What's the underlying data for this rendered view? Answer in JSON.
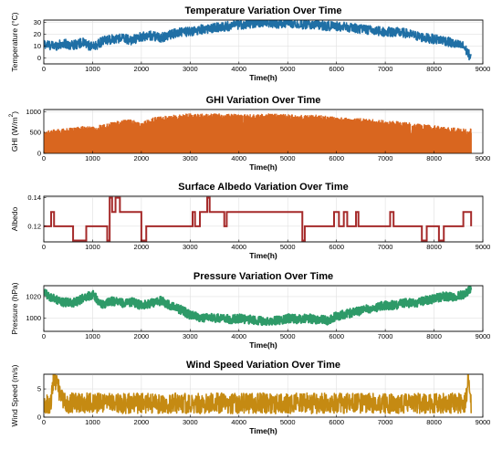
{
  "chart_data": [
    {
      "type": "line",
      "title": "Temperature Variation Over Time",
      "xlabel": "Time(h)",
      "ylabel": "Temperature (°C)",
      "xlim": [
        0,
        9000
      ],
      "ylim": [
        -5,
        32
      ],
      "xticks": [
        0,
        1000,
        2000,
        3000,
        4000,
        5000,
        6000,
        7000,
        8000,
        9000
      ],
      "yticks": [
        0,
        10,
        20,
        30
      ],
      "grid": true,
      "color": "#1f6fa5",
      "series": [
        {
          "x": [
            0,
            200,
            400,
            600,
            800,
            1000,
            1200,
            1400,
            1600,
            1800,
            2000,
            2200,
            2400,
            2600,
            2800,
            3000,
            3200,
            3400,
            3600,
            3800,
            4000,
            4200,
            4400,
            4600,
            4800,
            5000,
            5200,
            5400,
            5600,
            5800,
            6000,
            6200,
            6400,
            6600,
            6800,
            7000,
            7200,
            7400,
            7600,
            7800,
            8000,
            8200,
            8400,
            8600,
            8760
          ],
          "y": [
            12,
            10,
            12,
            11,
            13,
            9,
            14,
            16,
            17,
            15,
            18,
            19,
            17,
            20,
            22,
            22,
            24,
            25,
            26,
            27,
            28,
            29,
            30,
            30,
            29,
            30,
            29,
            28,
            28,
            27,
            27,
            26,
            25,
            24,
            23,
            22,
            22,
            21,
            19,
            17,
            16,
            15,
            12,
            10,
            0
          ],
          "noise": 4
        }
      ]
    },
    {
      "type": "area",
      "title": "GHI Variation Over Time",
      "xlabel": "Time(h)",
      "ylabel": "GHI (W/m²)",
      "ylabel_parts": [
        "GHI (W/m",
        "2",
        ")"
      ],
      "xlim": [
        0,
        9000
      ],
      "ylim": [
        0,
        1050
      ],
      "xticks": [
        0,
        1000,
        2000,
        3000,
        4000,
        5000,
        6000,
        7000,
        8000,
        9000
      ],
      "yticks": [
        0,
        500,
        1000
      ],
      "grid": true,
      "color": "#d9661f",
      "series": [
        {
          "x": [
            0,
            200,
            400,
            600,
            800,
            1000,
            1200,
            1400,
            1600,
            1800,
            2000,
            2200,
            2400,
            2600,
            2800,
            3000,
            3200,
            3400,
            3600,
            3800,
            4000,
            4200,
            4400,
            4600,
            4800,
            5000,
            5200,
            5400,
            5600,
            5800,
            6000,
            6200,
            6400,
            6600,
            6800,
            7000,
            7200,
            7400,
            7600,
            7800,
            8000,
            8200,
            8400,
            8600,
            8760
          ],
          "y": [
            540,
            580,
            600,
            620,
            660,
            640,
            700,
            760,
            800,
            820,
            760,
            860,
            900,
            920,
            940,
            960,
            950,
            960,
            960,
            950,
            950,
            940,
            940,
            960,
            950,
            940,
            930,
            920,
            930,
            900,
            880,
            870,
            860,
            840,
            820,
            800,
            780,
            760,
            720,
            700,
            680,
            640,
            620,
            600,
            600
          ],
          "noise": 380
        }
      ]
    },
    {
      "type": "line",
      "title": "Surface Albedo Variation Over Time",
      "xlabel": "Time(h)",
      "ylabel": "Albedo",
      "xlim": [
        0,
        9000
      ],
      "ylim": [
        0.109,
        0.141
      ],
      "xticks": [
        0,
        1000,
        2000,
        3000,
        4000,
        5000,
        6000,
        7000,
        8000,
        9000
      ],
      "yticks": [
        0.12,
        0.14
      ],
      "grid": true,
      "color": "#a52a2a",
      "step": true,
      "series": [
        {
          "x": [
            0,
            150,
            210,
            600,
            870,
            930,
            1300,
            1350,
            1400,
            1470,
            1560,
            2000,
            2100,
            3050,
            3100,
            3200,
            3350,
            3400,
            3700,
            3750,
            5300,
            5350,
            5950,
            6050,
            6150,
            6220,
            6400,
            6450,
            7100,
            7170,
            7750,
            7850,
            8100,
            8200,
            8400,
            8600,
            8760
          ],
          "y": [
            0.12,
            0.13,
            0.12,
            0.11,
            0.12,
            0.12,
            0.11,
            0.14,
            0.13,
            0.14,
            0.13,
            0.11,
            0.12,
            0.13,
            0.12,
            0.13,
            0.14,
            0.13,
            0.12,
            0.13,
            0.11,
            0.12,
            0.13,
            0.12,
            0.13,
            0.12,
            0.13,
            0.12,
            0.13,
            0.12,
            0.11,
            0.12,
            0.11,
            0.12,
            0.12,
            0.13,
            0.12
          ]
        }
      ]
    },
    {
      "type": "line",
      "title": "Pressure Variation Over Time",
      "xlabel": "Time(h)",
      "ylabel": "Pressure (hPa)",
      "xlim": [
        0,
        9000
      ],
      "ylim": [
        988,
        1030
      ],
      "xticks": [
        0,
        1000,
        2000,
        3000,
        4000,
        5000,
        6000,
        7000,
        8000,
        9000
      ],
      "yticks": [
        1000,
        1020
      ],
      "grid": true,
      "color": "#2e9a68",
      "series": [
        {
          "x": [
            0,
            200,
            400,
            600,
            800,
            1000,
            1200,
            1400,
            1600,
            1800,
            2000,
            2200,
            2400,
            2600,
            2800,
            3000,
            3200,
            3400,
            3600,
            3800,
            4000,
            4200,
            4400,
            4600,
            4800,
            5000,
            5200,
            5400,
            5600,
            5800,
            6000,
            6200,
            6400,
            6600,
            6800,
            7000,
            7200,
            7400,
            7600,
            7800,
            8000,
            8200,
            8400,
            8600,
            8760
          ],
          "y": [
            1024,
            1018,
            1015,
            1014,
            1018,
            1022,
            1012,
            1016,
            1014,
            1015,
            1012,
            1014,
            1016,
            1012,
            1008,
            1003,
            1000,
            1001,
            1000,
            999,
            1000,
            999,
            998,
            997,
            998,
            1000,
            999,
            1000,
            999,
            998,
            1002,
            1004,
            1006,
            1008,
            1010,
            1012,
            1012,
            1014,
            1014,
            1016,
            1018,
            1020,
            1020,
            1022,
            1026
          ],
          "noise": 4
        }
      ]
    },
    {
      "type": "line",
      "title": "Wind Speed Variation Over Time",
      "xlabel": "Time(h)",
      "ylabel": "Wind Speed (m/s)",
      "xlim": [
        0,
        9000
      ],
      "ylim": [
        0,
        7.6
      ],
      "xticks": [
        0,
        1000,
        2000,
        3000,
        4000,
        5000,
        6000,
        7000,
        8000,
        9000
      ],
      "yticks": [
        0,
        5
      ],
      "grid": true,
      "color": "#c58a12",
      "series": [
        {
          "x": [
            0,
            150,
            200,
            400,
            800,
            1200,
            1600,
            2000,
            2400,
            2800,
            3200,
            3600,
            4000,
            4400,
            4800,
            5200,
            5600,
            6000,
            6400,
            6800,
            7200,
            7600,
            8000,
            8400,
            8650,
            8700,
            8760
          ],
          "y": [
            2,
            2.5,
            7.5,
            2.5,
            2.5,
            2.5,
            2.4,
            2.5,
            2.4,
            2.5,
            2.4,
            2.5,
            2.4,
            2.5,
            2.4,
            2.5,
            2.4,
            2.5,
            2.4,
            2.5,
            2.4,
            2.5,
            2.4,
            2.5,
            2.5,
            7.2,
            2
          ],
          "noise": 1.8
        }
      ]
    }
  ]
}
